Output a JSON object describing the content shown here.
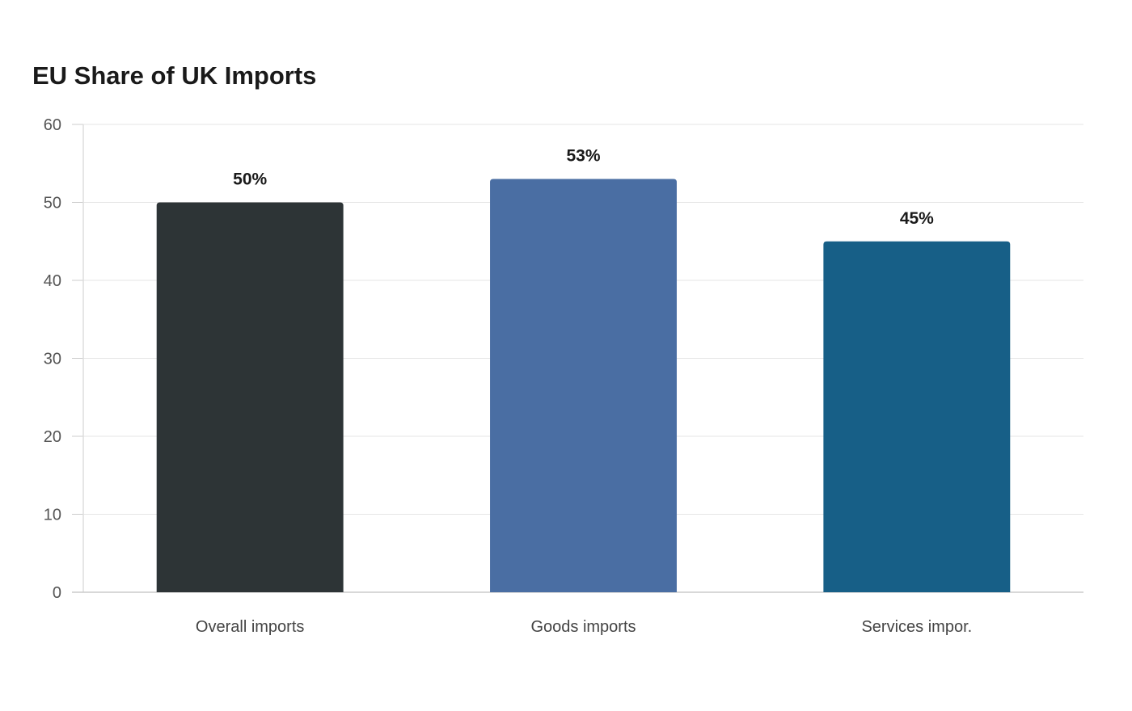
{
  "chart_data": {
    "type": "bar",
    "title": "EU Share of UK Imports",
    "xlabel": "",
    "ylabel": "",
    "categories": [
      "Overall imports",
      "Goods imports",
      "Services impor."
    ],
    "values": [
      50,
      53,
      45
    ],
    "data_labels": [
      "50%",
      "53%",
      "45%"
    ],
    "bar_colors": [
      "#2d3436",
      "#4a6ea3",
      "#175f87"
    ],
    "ylim": [
      0,
      60
    ],
    "yticks": [
      0,
      10,
      20,
      30,
      40,
      50,
      60
    ],
    "grid": true,
    "legend": "none"
  }
}
